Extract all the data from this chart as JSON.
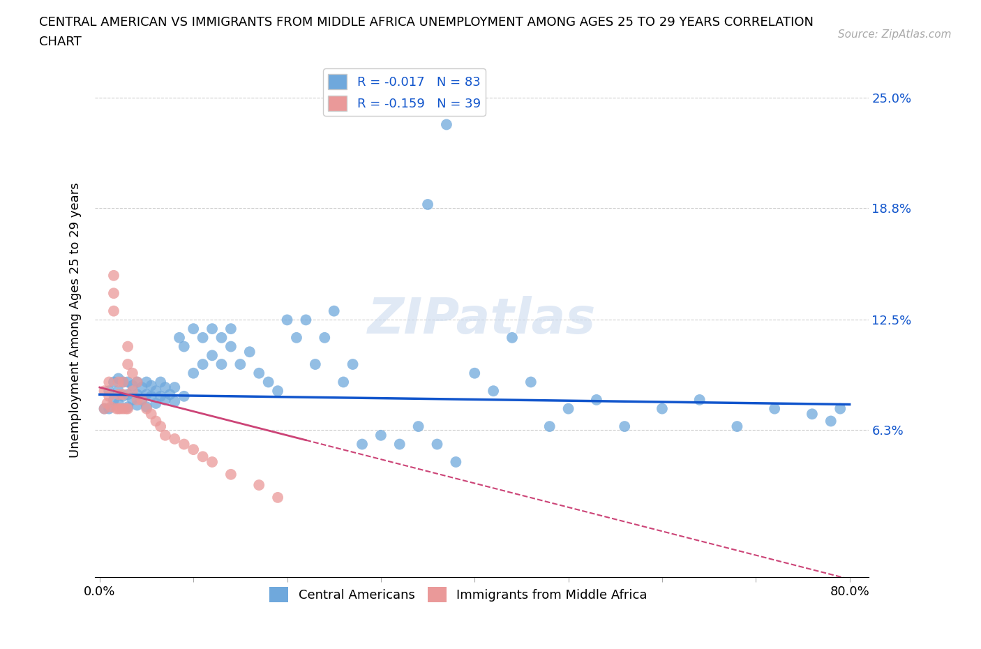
{
  "title": "CENTRAL AMERICAN VS IMMIGRANTS FROM MIDDLE AFRICA UNEMPLOYMENT AMONG AGES 25 TO 29 YEARS CORRELATION\nCHART",
  "source_text": "Source: ZipAtlas.com",
  "ylabel": "Unemployment Among Ages 25 to 29 years",
  "xlim": [
    -0.005,
    0.82
  ],
  "ylim": [
    -0.02,
    0.27
  ],
  "blue_R": -0.017,
  "blue_N": 83,
  "pink_R": -0.159,
  "pink_N": 39,
  "blue_color": "#6fa8dc",
  "pink_color": "#ea9999",
  "blue_line_color": "#1155cc",
  "pink_line_color": "#cc4477",
  "legend_label_blue": "Central Americans",
  "legend_label_pink": "Immigrants from Middle Africa",
  "watermark": "ZIPatlas",
  "grid_color": "#cccccc",
  "ytick_vals": [
    0.0,
    0.063,
    0.125,
    0.188,
    0.25
  ],
  "ytick_labels_right": [
    "",
    "6.3%",
    "12.5%",
    "18.8%",
    "25.0%"
  ],
  "blue_scatter_x": [
    0.005,
    0.01,
    0.01,
    0.015,
    0.015,
    0.02,
    0.02,
    0.02,
    0.025,
    0.025,
    0.03,
    0.03,
    0.03,
    0.035,
    0.035,
    0.04,
    0.04,
    0.04,
    0.045,
    0.045,
    0.05,
    0.05,
    0.05,
    0.055,
    0.055,
    0.06,
    0.06,
    0.065,
    0.065,
    0.07,
    0.07,
    0.075,
    0.08,
    0.08,
    0.085,
    0.09,
    0.09,
    0.1,
    0.1,
    0.11,
    0.11,
    0.12,
    0.12,
    0.13,
    0.13,
    0.14,
    0.14,
    0.15,
    0.16,
    0.17,
    0.18,
    0.19,
    0.2,
    0.21,
    0.22,
    0.23,
    0.24,
    0.25,
    0.26,
    0.27,
    0.28,
    0.3,
    0.32,
    0.34,
    0.36,
    0.38,
    0.4,
    0.42,
    0.44,
    0.46,
    0.48,
    0.5,
    0.53,
    0.56,
    0.6,
    0.64,
    0.68,
    0.72,
    0.76,
    0.78,
    0.79,
    0.35,
    0.37
  ],
  "blue_scatter_y": [
    0.075,
    0.075,
    0.085,
    0.08,
    0.09,
    0.078,
    0.085,
    0.092,
    0.082,
    0.09,
    0.076,
    0.083,
    0.09,
    0.08,
    0.088,
    0.077,
    0.083,
    0.09,
    0.08,
    0.087,
    0.076,
    0.083,
    0.09,
    0.082,
    0.088,
    0.078,
    0.085,
    0.082,
    0.09,
    0.08,
    0.087,
    0.083,
    0.079,
    0.087,
    0.115,
    0.082,
    0.11,
    0.095,
    0.12,
    0.1,
    0.115,
    0.105,
    0.12,
    0.1,
    0.115,
    0.11,
    0.12,
    0.1,
    0.107,
    0.095,
    0.09,
    0.085,
    0.125,
    0.115,
    0.125,
    0.1,
    0.115,
    0.13,
    0.09,
    0.1,
    0.055,
    0.06,
    0.055,
    0.065,
    0.055,
    0.045,
    0.095,
    0.085,
    0.115,
    0.09,
    0.065,
    0.075,
    0.08,
    0.065,
    0.075,
    0.08,
    0.065,
    0.075,
    0.072,
    0.068,
    0.075,
    0.19,
    0.235
  ],
  "pink_scatter_x": [
    0.005,
    0.005,
    0.008,
    0.01,
    0.01,
    0.012,
    0.015,
    0.015,
    0.015,
    0.018,
    0.02,
    0.02,
    0.02,
    0.022,
    0.025,
    0.025,
    0.025,
    0.028,
    0.03,
    0.03,
    0.03,
    0.035,
    0.035,
    0.04,
    0.04,
    0.045,
    0.05,
    0.055,
    0.06,
    0.065,
    0.07,
    0.08,
    0.09,
    0.1,
    0.11,
    0.12,
    0.14,
    0.17,
    0.19
  ],
  "pink_scatter_y": [
    0.075,
    0.085,
    0.078,
    0.082,
    0.09,
    0.076,
    0.13,
    0.14,
    0.15,
    0.075,
    0.075,
    0.083,
    0.09,
    0.075,
    0.075,
    0.083,
    0.09,
    0.075,
    0.1,
    0.11,
    0.075,
    0.085,
    0.095,
    0.08,
    0.09,
    0.08,
    0.075,
    0.072,
    0.068,
    0.065,
    0.06,
    0.058,
    0.055,
    0.052,
    0.048,
    0.045,
    0.038,
    0.032,
    0.025
  ]
}
